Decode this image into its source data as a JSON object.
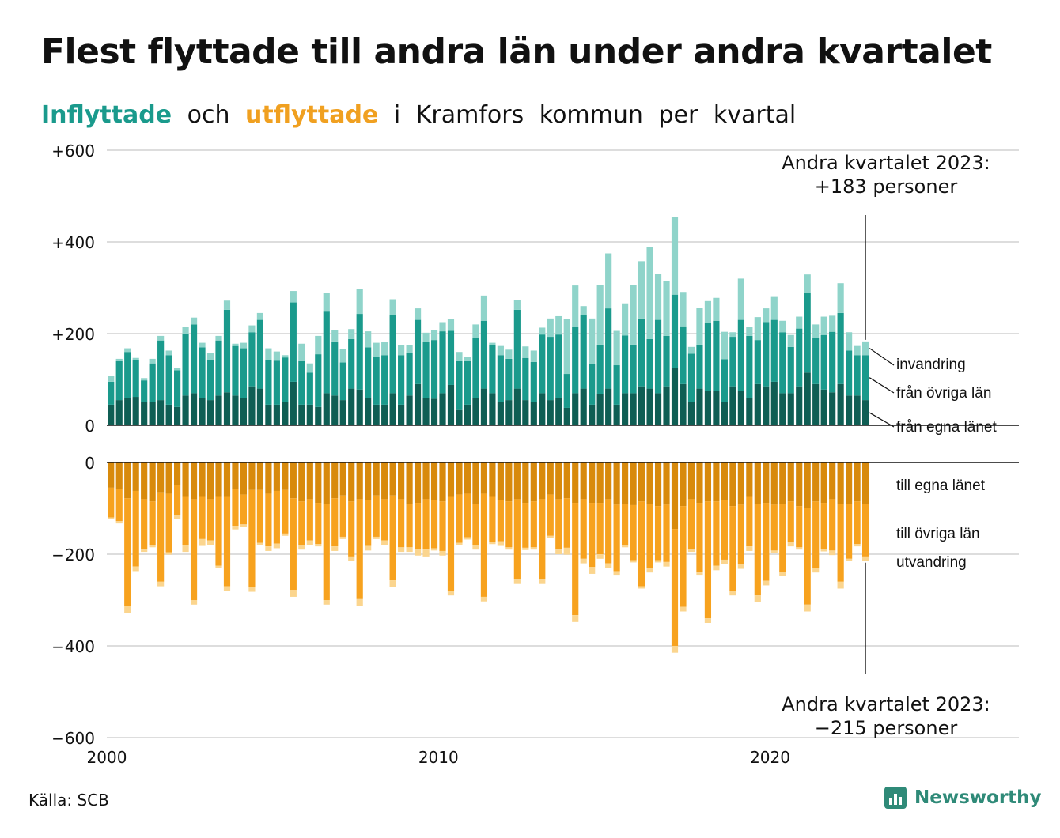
{
  "title": "Flest flyttade till andra län under andra kvartalet",
  "subtitle": {
    "inflyttade": "Inflyttade",
    "och": "och",
    "utflyttade": "utflyttade",
    "rest": [
      "i",
      "Kramfors",
      "kommun",
      "per",
      "kvartal"
    ]
  },
  "source": "Källa: SCB",
  "brand": "Newsworthy",
  "colors": {
    "in_egna": "#0f5e54",
    "in_ovriga": "#1a9a8c",
    "in_invandring": "#8fd4ca",
    "ut_egna": "#d88a0c",
    "ut_ovriga": "#f7a21e",
    "ut_utvandring": "#fbd58e",
    "brand": "#2f8a78"
  },
  "annotations": {
    "top": [
      "Andra kvartalet 2023:",
      "+183 personer"
    ],
    "bottom": [
      "Andra kvartalet 2023:",
      "−215 personer"
    ]
  },
  "labels": {
    "invandring": "invandring",
    "ovriga_in": "från övriga län",
    "egna_in": "från egna länet",
    "egna_ut": "till egna länet",
    "ovriga_ut": "till övriga län",
    "utvandring": "utvandring"
  },
  "chart_data": {
    "type": "bar",
    "stacked": true,
    "x_start": "2000 K1",
    "x_end": "2023 K2",
    "x_ticks": [
      "2000",
      "2010",
      "2020"
    ],
    "y_ticks": [
      "+600",
      "+400",
      "+200",
      "0"
    ],
    "y_ticks_bottom": [
      "0",
      "−200",
      "−400",
      "−600"
    ],
    "ylim_top": [
      0,
      600
    ],
    "ylim_bottom": [
      -600,
      0
    ],
    "series_in": [
      {
        "name": "från egna länet",
        "values": [
          45,
          55,
          60,
          62,
          50,
          50,
          55,
          45,
          40,
          65,
          70,
          60,
          55,
          65,
          72,
          65,
          60,
          85,
          80,
          45,
          45,
          50,
          95,
          45,
          45,
          40,
          70,
          65,
          55,
          80,
          78,
          60,
          45,
          45,
          70,
          45,
          65,
          90,
          60,
          58,
          70,
          88,
          35,
          45,
          60,
          80,
          70,
          50,
          55,
          80,
          55,
          50,
          70,
          55,
          60,
          38,
          70,
          80,
          45,
          68,
          80,
          45,
          70,
          70,
          85,
          80,
          70,
          85,
          125,
          90,
          50,
          80,
          75,
          75,
          50,
          85,
          75,
          60,
          90,
          85,
          95,
          70,
          70,
          85,
          115,
          90,
          78,
          72,
          90,
          65,
          65,
          55
        ]
      },
      {
        "name": "från övriga län",
        "values": [
          50,
          85,
          100,
          80,
          48,
          85,
          130,
          108,
          80,
          135,
          150,
          110,
          88,
          120,
          180,
          108,
          108,
          118,
          150,
          98,
          96,
          98,
          173,
          95,
          70,
          115,
          178,
          118,
          82,
          108,
          165,
          110,
          105,
          108,
          170,
          108,
          92,
          140,
          122,
          128,
          135,
          118,
          105,
          95,
          130,
          148,
          105,
          103,
          90,
          172,
          92,
          88,
          128,
          138,
          138,
          74,
          145,
          160,
          88,
          108,
          175,
          86,
          126,
          106,
          148,
          108,
          160,
          110,
          160,
          126,
          106,
          96,
          148,
          153,
          94,
          108,
          155,
          135,
          96,
          140,
          135,
          133,
          101,
          126,
          174,
          100,
          119,
          132,
          155,
          98,
          88,
          98
        ]
      },
      {
        "name": "invandring",
        "values": [
          12,
          5,
          8,
          5,
          5,
          10,
          10,
          10,
          5,
          15,
          15,
          10,
          15,
          10,
          20,
          5,
          12,
          15,
          15,
          25,
          20,
          5,
          25,
          38,
          20,
          40,
          40,
          25,
          30,
          22,
          55,
          35,
          30,
          28,
          35,
          22,
          18,
          25,
          20,
          22,
          20,
          25,
          20,
          10,
          30,
          55,
          5,
          20,
          20,
          22,
          25,
          25,
          15,
          40,
          40,
          120,
          90,
          20,
          100,
          130,
          120,
          75,
          70,
          130,
          125,
          200,
          100,
          120,
          170,
          75,
          15,
          80,
          48,
          50,
          60,
          10,
          90,
          20,
          50,
          30,
          50,
          25,
          26,
          26,
          40,
          30,
          40,
          35,
          65,
          40,
          20,
          30
        ]
      }
    ],
    "series_ut": [
      {
        "name": "till egna länet",
        "values": [
          55,
          58,
          78,
          62,
          80,
          85,
          65,
          68,
          50,
          75,
          80,
          75,
          80,
          75,
          75,
          58,
          70,
          60,
          60,
          68,
          62,
          60,
          78,
          85,
          80,
          88,
          90,
          78,
          72,
          85,
          80,
          82,
          72,
          80,
          72,
          80,
          90,
          88,
          80,
          82,
          85,
          75,
          70,
          68,
          90,
          68,
          75,
          82,
          85,
          80,
          88,
          85,
          80,
          70,
          80,
          78,
          88,
          80,
          88,
          88,
          80,
          92,
          90,
          93,
          85,
          90,
          95,
          92,
          145,
          95,
          80,
          88,
          85,
          85,
          82,
          95,
          92,
          75,
          90,
          88,
          92,
          90,
          85,
          95,
          100,
          85,
          88,
          80,
          90,
          90,
          85,
          90
        ]
      },
      {
        "name": "till övriga län",
        "values": [
          65,
          70,
          235,
          165,
          110,
          95,
          195,
          128,
          65,
          105,
          220,
          92,
          90,
          150,
          195,
          80,
          65,
          212,
          115,
          115,
          115,
          95,
          200,
          95,
          90,
          90,
          210,
          105,
          90,
          120,
          218,
          100,
          90,
          90,
          185,
          105,
          95,
          100,
          110,
          105,
          108,
          205,
          105,
          95,
          90,
          225,
          98,
          90,
          100,
          175,
          98,
          100,
          175,
          90,
          110,
          108,
          245,
          130,
          140,
          112,
          140,
          145,
          90,
          120,
          185,
          140,
          118,
          125,
          255,
          220,
          110,
          152,
          255,
          140,
          130,
          185,
          130,
          108,
          200,
          170,
          100,
          148,
          88,
          90,
          210,
          145,
          101,
          112,
          170,
          120,
          93,
          115
        ]
      },
      {
        "name": "utvandring",
        "values": [
          3,
          5,
          15,
          10,
          5,
          5,
          10,
          5,
          8,
          15,
          10,
          15,
          10,
          5,
          10,
          8,
          5,
          10,
          5,
          10,
          10,
          5,
          15,
          10,
          10,
          5,
          10,
          10,
          5,
          10,
          15,
          10,
          5,
          10,
          15,
          10,
          10,
          15,
          15,
          5,
          10,
          10,
          5,
          5,
          10,
          10,
          5,
          10,
          5,
          10,
          5,
          5,
          10,
          5,
          10,
          15,
          15,
          10,
          15,
          10,
          10,
          8,
          5,
          5,
          5,
          10,
          5,
          10,
          15,
          10,
          5,
          5,
          10,
          10,
          10,
          10,
          10,
          10,
          15,
          10,
          5,
          10,
          10,
          5,
          15,
          10,
          5,
          10,
          15,
          5,
          5,
          10
        ]
      }
    ]
  }
}
